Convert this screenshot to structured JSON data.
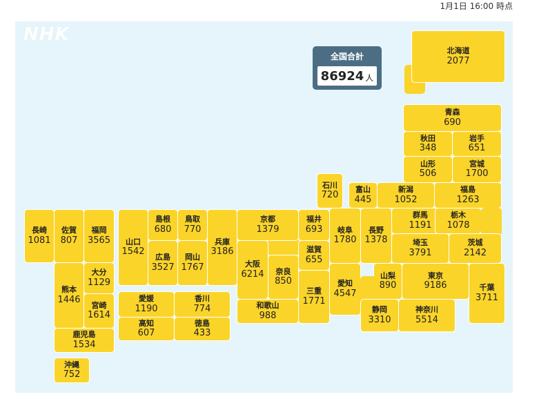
{
  "timestamp": "1月1日 16:00 時点",
  "logo": "NHK",
  "total": {
    "label": "全国合計",
    "value": "86924",
    "unit": "人"
  },
  "prefs": {
    "hokkaido": {
      "name": "北海道",
      "count": "2077"
    },
    "aomori": {
      "name": "青森",
      "count": "690"
    },
    "akita": {
      "name": "秋田",
      "count": "348"
    },
    "iwate": {
      "name": "岩手",
      "count": "651"
    },
    "yamagata": {
      "name": "山形",
      "count": "506"
    },
    "miyagi": {
      "name": "宮城",
      "count": "1700"
    },
    "ishikawa": {
      "name": "石川",
      "count": "720"
    },
    "toyama": {
      "name": "富山",
      "count": "445"
    },
    "niigata": {
      "name": "新潟",
      "count": "1052"
    },
    "fukushima": {
      "name": "福島",
      "count": "1263"
    },
    "nagasaki": {
      "name": "長崎",
      "count": "1081"
    },
    "saga": {
      "name": "佐賀",
      "count": "807"
    },
    "fukuoka": {
      "name": "福岡",
      "count": "3565"
    },
    "yamaguchi": {
      "name": "山口",
      "count": "1542"
    },
    "shimane": {
      "name": "島根",
      "count": "680"
    },
    "tottori": {
      "name": "鳥取",
      "count": "770"
    },
    "hiroshima": {
      "name": "広島",
      "count": "3527"
    },
    "okayama": {
      "name": "岡山",
      "count": "1767"
    },
    "hyogo": {
      "name": "兵庫",
      "count": "3186"
    },
    "kyoto": {
      "name": "京都",
      "count": "1379"
    },
    "osaka": {
      "name": "大阪",
      "count": "6214"
    },
    "nara": {
      "name": "奈良",
      "count": "850"
    },
    "wakayama": {
      "name": "和歌山",
      "count": "988"
    },
    "fukui": {
      "name": "福井",
      "count": "693"
    },
    "shiga": {
      "name": "滋賀",
      "count": "655"
    },
    "mie": {
      "name": "三重",
      "count": "1771"
    },
    "gifu": {
      "name": "岐阜",
      "count": "1780"
    },
    "aichi": {
      "name": "愛知",
      "count": "4547"
    },
    "nagano": {
      "name": "長野",
      "count": "1378"
    },
    "gunma": {
      "name": "群馬",
      "count": "1191"
    },
    "tochigi": {
      "name": "栃木",
      "count": "1078"
    },
    "saitama": {
      "name": "埼玉",
      "count": "3791"
    },
    "ibaraki": {
      "name": "茨城",
      "count": "2142"
    },
    "yamanashi": {
      "name": "山梨",
      "count": "890"
    },
    "tokyo": {
      "name": "東京",
      "count": "9186"
    },
    "chiba": {
      "name": "千葉",
      "count": "3711"
    },
    "shizuoka": {
      "name": "静岡",
      "count": "3310"
    },
    "kanagawa": {
      "name": "神奈川",
      "count": "5514"
    },
    "kumamoto": {
      "name": "熊本",
      "count": "1446"
    },
    "oita": {
      "name": "大分",
      "count": "1129"
    },
    "miyazaki": {
      "name": "宮崎",
      "count": "1614"
    },
    "kagoshima": {
      "name": "鹿児島",
      "count": "1534"
    },
    "okinawa": {
      "name": "沖縄",
      "count": "752"
    },
    "ehime": {
      "name": "愛媛",
      "count": "1190"
    },
    "kagawa": {
      "name": "香川",
      "count": "774"
    },
    "kochi": {
      "name": "高知",
      "count": "607"
    },
    "tokushima": {
      "name": "徳島",
      "count": "433"
    }
  },
  "colors": {
    "tile": "#fbd42a",
    "panel": "#e5f5fb",
    "total_box": "#4b6e84"
  }
}
